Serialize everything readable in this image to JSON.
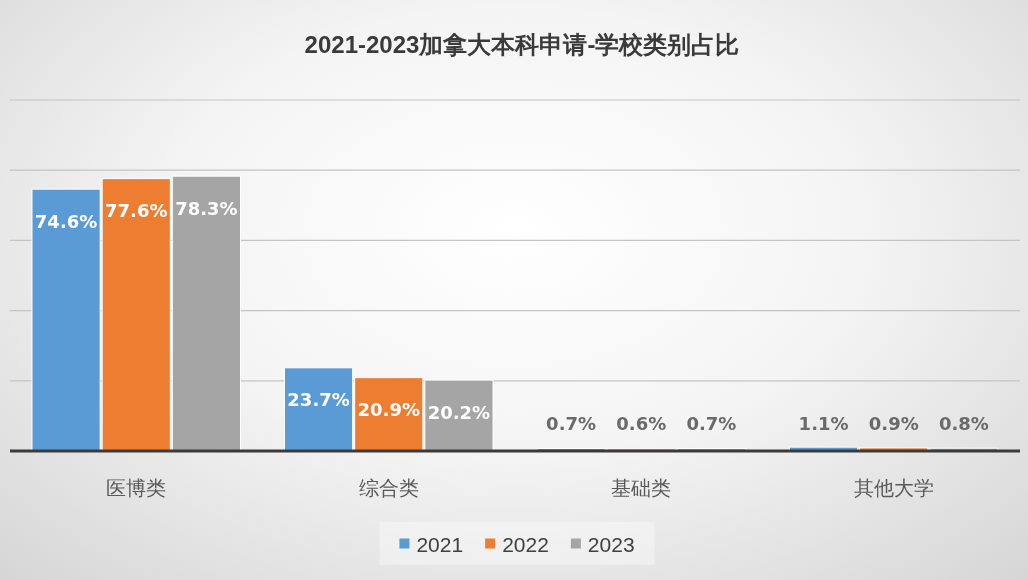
{
  "chart_data": {
    "type": "bar",
    "title": "2021-2023加拿大本科申请-学校类别占比",
    "categories": [
      "医博类",
      "综合类",
      "基础类",
      "其他大学"
    ],
    "series": [
      {
        "name": "2021",
        "color": "#5b9bd5",
        "values": [
          74.6,
          23.7,
          0.7,
          1.1
        ],
        "value_labels": [
          "74.6%",
          "23.7%",
          "0.7%",
          "1.1%"
        ]
      },
      {
        "name": "2022",
        "color": "#ed7d31",
        "values": [
          77.6,
          20.9,
          0.6,
          0.9
        ],
        "value_labels": [
          "77.6%",
          "20.9%",
          "0.6%",
          "0.9%"
        ]
      },
      {
        "name": "2023",
        "color": "#a5a5a5",
        "values": [
          78.3,
          20.2,
          0.7,
          0.8
        ],
        "value_labels": [
          "78.3%",
          "20.2%",
          "0.7%",
          "0.8%"
        ]
      }
    ],
    "ylim": [
      0,
      100
    ],
    "yticks": [
      {
        "value": 0,
        "label": null
      },
      {
        "value": 20,
        "label": null
      },
      {
        "value": 40,
        "label": null
      },
      {
        "value": 60,
        "label": null
      },
      {
        "value": 80,
        "label": null
      },
      {
        "value": 100,
        "label": null
      }
    ],
    "tick_labels": "x",
    "grid": "y",
    "legend": "bottom"
  }
}
